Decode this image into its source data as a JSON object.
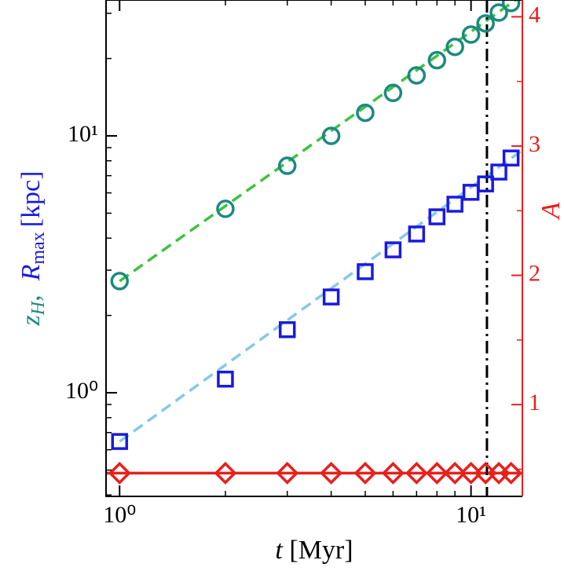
{
  "chart_data": {
    "type": "scatter",
    "xlabel": {
      "symbol": "t",
      "unit": "[Myr]"
    },
    "ylabel": {
      "a": "z",
      "a_sub": "H",
      "sep": ",",
      "b": "R",
      "b_sub": "max",
      "unit": "[kpc]"
    },
    "y2label": "A",
    "xscale": "log",
    "yscale": "log",
    "xlim": [
      0.915,
      14
    ],
    "ylim": [
      0.395,
      33.8
    ],
    "y2lim": [
      0.29,
      4.13
    ],
    "xticks": [
      {
        "value": 1,
        "label": "10⁰"
      },
      {
        "value": 10,
        "label": "10¹"
      }
    ],
    "xminor": [
      2,
      3,
      4,
      5,
      6,
      7,
      8,
      9
    ],
    "yticks": [
      {
        "value": 1,
        "label": "10⁰"
      },
      {
        "value": 10,
        "label": "10¹"
      }
    ],
    "yminor": [
      0.4,
      0.5,
      0.6,
      0.7,
      0.8,
      0.9,
      2,
      3,
      4,
      5,
      6,
      7,
      8,
      9,
      20,
      30
    ],
    "y2ticks": [
      1,
      2,
      3,
      4
    ],
    "y2minor": [
      0.5,
      1.5,
      2.5,
      3.5
    ],
    "y2color": "#e8201c",
    "series": [
      {
        "marker": "circle",
        "color": "#1b8a80",
        "x": [
          1,
          2,
          3,
          4,
          5,
          6,
          7,
          8,
          9,
          10,
          11,
          12,
          13
        ],
        "values": [
          2.72,
          5.2,
          7.65,
          10,
          12.3,
          14.7,
          17.2,
          19.7,
          22.2,
          24.8,
          27.4,
          30.2,
          32.9
        ]
      },
      {
        "marker": "square",
        "color": "#1a1ae0",
        "x": [
          1,
          2,
          3,
          4,
          5,
          6,
          7,
          8,
          9,
          10,
          11,
          12,
          13
        ],
        "values": [
          0.646,
          1.13,
          1.76,
          2.36,
          2.96,
          3.6,
          4.15,
          4.84,
          5.42,
          6.03,
          6.5,
          7.23,
          8.2
        ]
      },
      {
        "marker": "diamond",
        "color": "#e8201c",
        "axis": "y2",
        "x": [
          1,
          2,
          3,
          4,
          5,
          6,
          7,
          8,
          9,
          10,
          11,
          12,
          13
        ],
        "values": [
          0.47,
          0.47,
          0.47,
          0.47,
          0.47,
          0.47,
          0.47,
          0.47,
          0.47,
          0.47,
          0.47,
          0.47,
          0.47
        ]
      }
    ],
    "lines": [
      {
        "x": [
          1,
          14
        ],
        "values": [
          2.72,
          35.3
        ],
        "color": "#3cc43c",
        "style": "dashed"
      },
      {
        "x": [
          1,
          14
        ],
        "values": [
          0.646,
          8.8
        ],
        "color": "#88c8e8",
        "style": "dashed"
      },
      {
        "x": [
          0.915,
          14
        ],
        "values": [
          0.47,
          0.47
        ],
        "color": "#e8201c",
        "style": "solid",
        "axis": "y2"
      }
    ],
    "vline": {
      "x": 11.1,
      "color": "#000000",
      "style": "dashdot"
    }
  }
}
